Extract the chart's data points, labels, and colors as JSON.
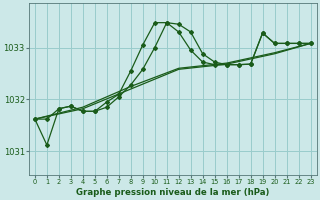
{
  "background_color": "#cce8e8",
  "grid_color": "#99cccc",
  "line_color": "#1a5c1a",
  "xlabel": "Graphe pression niveau de la mer (hPa)",
  "xlim": [
    -0.5,
    23.5
  ],
  "ylim": [
    1030.55,
    1033.85
  ],
  "yticks": [
    1031,
    1032,
    1033
  ],
  "xticks": [
    0,
    1,
    2,
    3,
    4,
    5,
    6,
    7,
    8,
    9,
    10,
    11,
    12,
    13,
    14,
    15,
    16,
    17,
    18,
    19,
    20,
    21,
    22,
    23
  ],
  "line1_x": [
    0,
    1,
    2,
    3,
    4,
    5,
    6,
    7,
    8,
    9,
    10,
    11,
    12,
    13,
    14,
    15,
    16,
    17,
    18,
    19,
    20,
    21,
    22,
    23
  ],
  "line1_y": [
    1031.62,
    1031.62,
    1031.82,
    1031.87,
    1031.77,
    1031.77,
    1031.85,
    1032.05,
    1032.28,
    1032.58,
    1033.0,
    1033.48,
    1033.45,
    1033.3,
    1032.88,
    1032.72,
    1032.67,
    1032.67,
    1032.68,
    1033.28,
    1033.08,
    1033.08,
    1033.08,
    1033.08
  ],
  "line2_x": [
    0,
    1,
    2,
    3,
    4,
    5,
    6,
    7,
    8,
    9,
    10,
    11,
    12,
    13,
    14,
    15,
    16,
    17,
    18,
    19,
    20,
    21,
    22,
    23
  ],
  "line2_y": [
    1031.62,
    1031.12,
    1031.82,
    1031.87,
    1031.77,
    1031.77,
    1031.95,
    1032.1,
    1032.55,
    1033.05,
    1033.48,
    1033.48,
    1033.3,
    1032.95,
    1032.72,
    1032.67,
    1032.67,
    1032.67,
    1032.68,
    1033.28,
    1033.08,
    1033.08,
    1033.08,
    1033.08
  ],
  "line3_x": [
    0,
    4,
    8,
    12,
    16,
    20,
    23
  ],
  "line3_y": [
    1031.62,
    1031.82,
    1032.2,
    1032.58,
    1032.68,
    1032.88,
    1033.08
  ],
  "line4_x": [
    0,
    4,
    8,
    12,
    16,
    20,
    23
  ],
  "line4_y": [
    1031.62,
    1031.85,
    1032.25,
    1032.6,
    1032.7,
    1032.9,
    1033.08
  ]
}
